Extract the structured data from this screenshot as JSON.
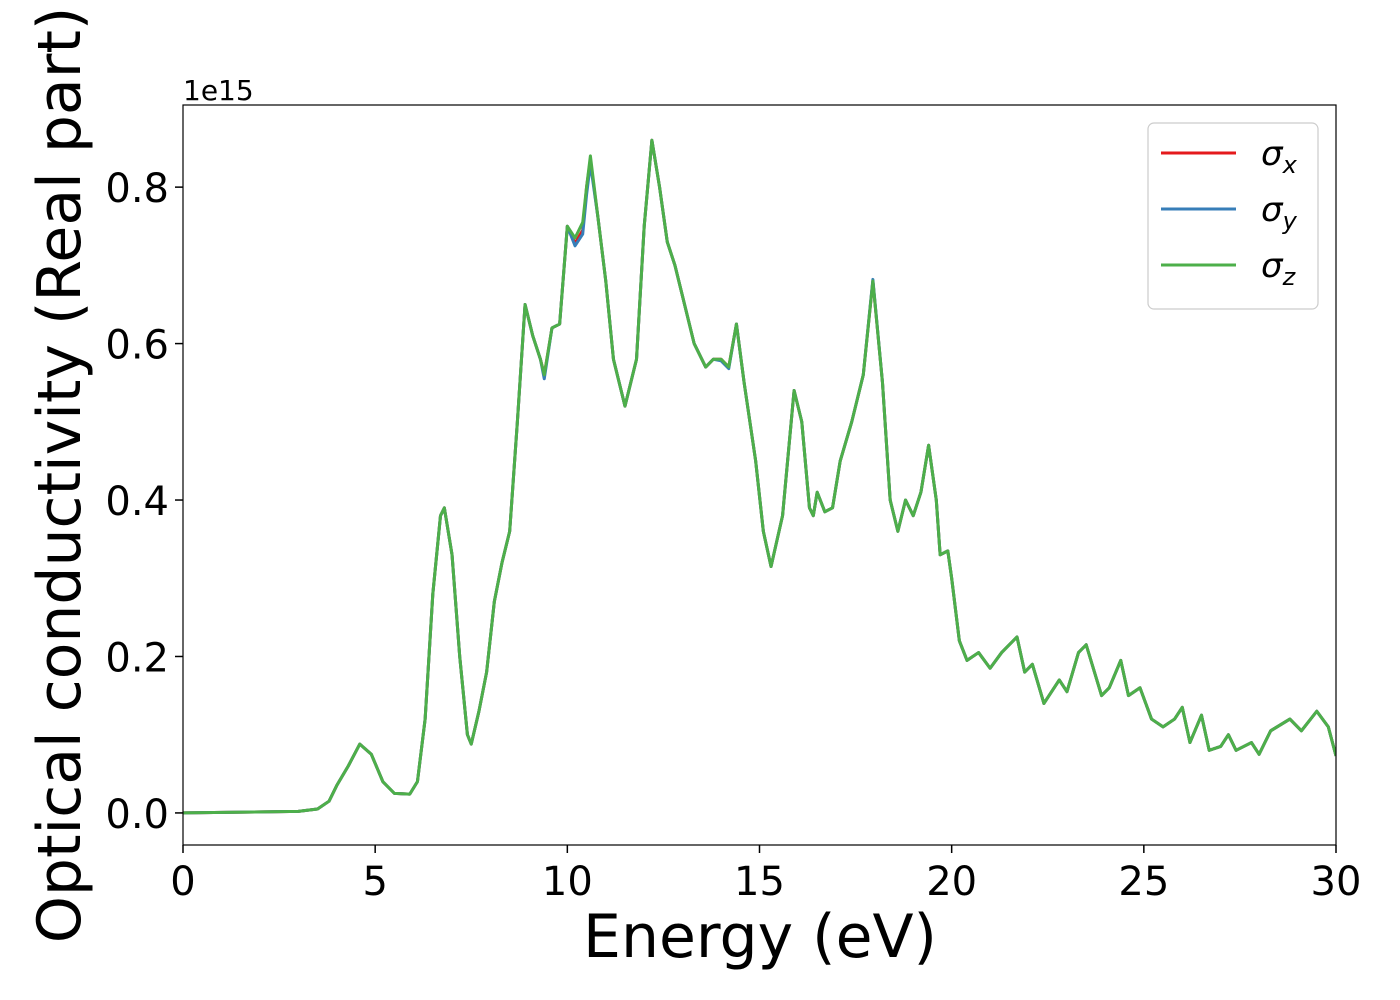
{
  "chart_data": {
    "type": "line",
    "x_label": "Energy (eV)",
    "y_label": "Optical conductivity (Real part)",
    "y_offset_label": "1e15",
    "xlim": [
      0,
      30
    ],
    "xticks": [
      0,
      5,
      10,
      15,
      20,
      25,
      30
    ],
    "ylim": [
      -0.041,
      0.905
    ],
    "yticks": [
      {
        "value": 0,
        "label": "0.0"
      },
      {
        "value": 0.2,
        "label": "0.2"
      },
      {
        "value": 0.4,
        "label": "0.4"
      },
      {
        "value": 0.6,
        "label": "0.6"
      },
      {
        "value": 0.8,
        "label": "0.8"
      }
    ],
    "grid": false,
    "legend": "upper right",
    "x": [
      0,
      3,
      3.5,
      3.8,
      4.0,
      4.3,
      4.6,
      4.9,
      5.2,
      5.5,
      5.9,
      6.1,
      6.3,
      6.5,
      6.7,
      6.8,
      7.0,
      7.2,
      7.4,
      7.5,
      7.7,
      7.9,
      8.1,
      8.3,
      8.5,
      8.7,
      8.9,
      9.1,
      9.3,
      9.4,
      9.6,
      9.8,
      10.0,
      10.2,
      10.4,
      10.5,
      10.6,
      10.8,
      11.0,
      11.2,
      11.5,
      11.8,
      12.0,
      12.2,
      12.4,
      12.6,
      12.8,
      13.0,
      13.3,
      13.6,
      13.8,
      14.0,
      14.2,
      14.4,
      14.6,
      14.9,
      15.1,
      15.3,
      15.6,
      15.9,
      16.1,
      16.3,
      16.4,
      16.5,
      16.7,
      16.9,
      17.1,
      17.4,
      17.7,
      17.95,
      18.2,
      18.4,
      18.6,
      18.8,
      19.0,
      19.2,
      19.4,
      19.6,
      19.7,
      19.9,
      20.0,
      20.2,
      20.4,
      20.7,
      21.0,
      21.3,
      21.7,
      21.9,
      22.1,
      22.4,
      22.8,
      23.0,
      23.3,
      23.5,
      23.9,
      24.1,
      24.4,
      24.6,
      24.9,
      25.2,
      25.5,
      25.8,
      26.0,
      26.2,
      26.5,
      26.7,
      27.0,
      27.2,
      27.4,
      27.8,
      28.0,
      28.3,
      28.8,
      29.1,
      29.5,
      29.8,
      30.0
    ],
    "series": [
      {
        "name": "σx",
        "color": "#e41a1c",
        "values": [
          0,
          0.002,
          0.005,
          0.015,
          0.035,
          0.06,
          0.088,
          0.075,
          0.04,
          0.025,
          0.024,
          0.04,
          0.12,
          0.28,
          0.38,
          0.39,
          0.33,
          0.2,
          0.1,
          0.088,
          0.13,
          0.18,
          0.27,
          0.32,
          0.36,
          0.5,
          0.65,
          0.61,
          0.58,
          0.56,
          0.62,
          0.625,
          0.75,
          0.728,
          0.745,
          0.8,
          0.835,
          0.76,
          0.68,
          0.58,
          0.52,
          0.58,
          0.75,
          0.86,
          0.8,
          0.73,
          0.7,
          0.66,
          0.6,
          0.57,
          0.58,
          0.58,
          0.57,
          0.625,
          0.55,
          0.45,
          0.36,
          0.315,
          0.38,
          0.54,
          0.5,
          0.39,
          0.38,
          0.41,
          0.385,
          0.39,
          0.45,
          0.5,
          0.56,
          0.68,
          0.55,
          0.4,
          0.36,
          0.4,
          0.38,
          0.41,
          0.47,
          0.4,
          0.33,
          0.335,
          0.3,
          0.22,
          0.195,
          0.205,
          0.185,
          0.205,
          0.225,
          0.18,
          0.19,
          0.14,
          0.17,
          0.155,
          0.205,
          0.215,
          0.15,
          0.16,
          0.195,
          0.15,
          0.16,
          0.12,
          0.11,
          0.12,
          0.135,
          0.09,
          0.125,
          0.08,
          0.085,
          0.1,
          0.08,
          0.09,
          0.075,
          0.105,
          0.12,
          0.105,
          0.13,
          0.11,
          0.073
        ]
      },
      {
        "name": "σy",
        "color": "#377eb8",
        "values": [
          0,
          0.002,
          0.005,
          0.015,
          0.035,
          0.06,
          0.088,
          0.075,
          0.04,
          0.025,
          0.024,
          0.04,
          0.12,
          0.28,
          0.38,
          0.39,
          0.33,
          0.2,
          0.1,
          0.088,
          0.13,
          0.18,
          0.27,
          0.32,
          0.36,
          0.5,
          0.65,
          0.61,
          0.58,
          0.555,
          0.62,
          0.625,
          0.75,
          0.725,
          0.74,
          0.79,
          0.83,
          0.76,
          0.68,
          0.58,
          0.52,
          0.58,
          0.75,
          0.86,
          0.8,
          0.73,
          0.7,
          0.66,
          0.6,
          0.57,
          0.58,
          0.578,
          0.568,
          0.625,
          0.55,
          0.45,
          0.36,
          0.315,
          0.38,
          0.54,
          0.5,
          0.39,
          0.38,
          0.41,
          0.385,
          0.39,
          0.45,
          0.5,
          0.56,
          0.682,
          0.55,
          0.4,
          0.36,
          0.4,
          0.38,
          0.41,
          0.47,
          0.4,
          0.33,
          0.335,
          0.3,
          0.22,
          0.195,
          0.205,
          0.185,
          0.205,
          0.225,
          0.18,
          0.19,
          0.14,
          0.17,
          0.155,
          0.205,
          0.215,
          0.15,
          0.16,
          0.195,
          0.15,
          0.16,
          0.12,
          0.11,
          0.12,
          0.135,
          0.09,
          0.125,
          0.08,
          0.085,
          0.1,
          0.08,
          0.09,
          0.075,
          0.105,
          0.12,
          0.105,
          0.13,
          0.11,
          0.073
        ]
      },
      {
        "name": "σz",
        "color": "#4daf4a",
        "values": [
          0,
          0.002,
          0.005,
          0.015,
          0.035,
          0.06,
          0.088,
          0.075,
          0.04,
          0.025,
          0.024,
          0.04,
          0.12,
          0.28,
          0.38,
          0.39,
          0.33,
          0.2,
          0.1,
          0.088,
          0.13,
          0.18,
          0.27,
          0.32,
          0.36,
          0.5,
          0.65,
          0.61,
          0.58,
          0.56,
          0.62,
          0.625,
          0.75,
          0.735,
          0.755,
          0.8,
          0.84,
          0.76,
          0.68,
          0.58,
          0.52,
          0.58,
          0.75,
          0.86,
          0.8,
          0.73,
          0.7,
          0.66,
          0.6,
          0.57,
          0.58,
          0.58,
          0.57,
          0.625,
          0.55,
          0.45,
          0.36,
          0.315,
          0.38,
          0.54,
          0.5,
          0.39,
          0.38,
          0.41,
          0.385,
          0.39,
          0.45,
          0.5,
          0.56,
          0.68,
          0.55,
          0.4,
          0.36,
          0.4,
          0.38,
          0.41,
          0.47,
          0.4,
          0.33,
          0.335,
          0.3,
          0.22,
          0.195,
          0.205,
          0.185,
          0.205,
          0.225,
          0.18,
          0.19,
          0.14,
          0.17,
          0.155,
          0.205,
          0.215,
          0.15,
          0.16,
          0.195,
          0.15,
          0.16,
          0.12,
          0.11,
          0.12,
          0.135,
          0.09,
          0.125,
          0.08,
          0.085,
          0.1,
          0.08,
          0.09,
          0.075,
          0.105,
          0.12,
          0.105,
          0.13,
          0.11,
          0.073
        ]
      }
    ]
  }
}
